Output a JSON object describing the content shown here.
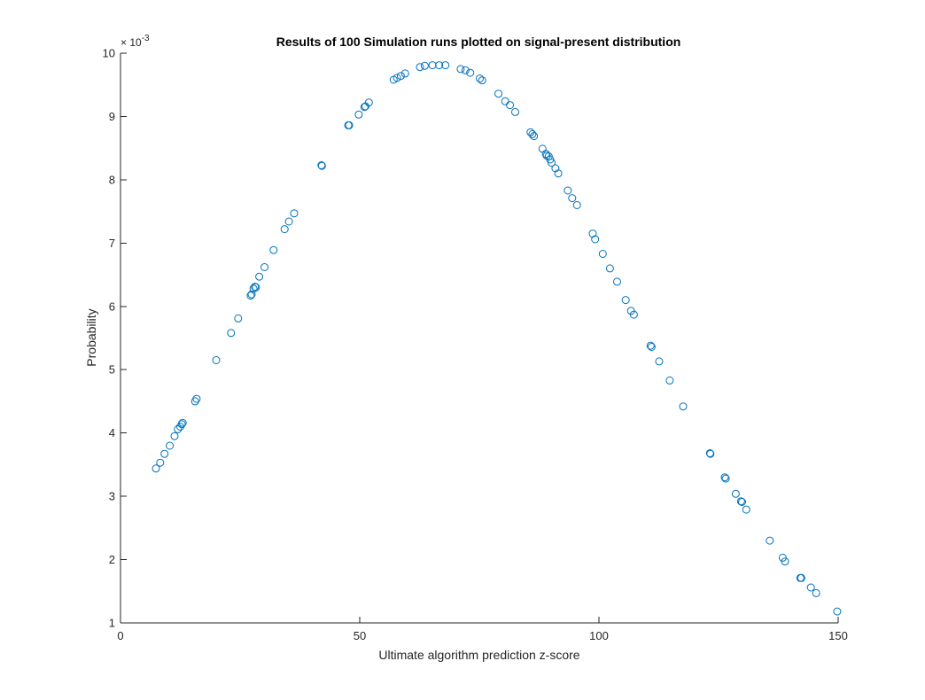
{
  "chart_data": {
    "type": "scatter",
    "title": "Results of 100 Simulation runs plotted on signal-present distribution",
    "xlabel": "Ultimate algorithm prediction z-score",
    "ylabel": "Probability",
    "y_exponent_label": "× 10^{-3}",
    "y_exponent_base": "× 10",
    "y_exponent_power": "-3",
    "xlim": [
      0,
      150
    ],
    "ylim": [
      1,
      10
    ],
    "xticks": [
      "0",
      "50",
      "100",
      "150"
    ],
    "yticks": [
      "1",
      "2",
      "3",
      "4",
      "5",
      "6",
      "7",
      "8",
      "9",
      "10"
    ],
    "grid": false,
    "marker": "circle-open",
    "color": "#0072bd",
    "points": [
      [
        7.4,
        3.44
      ],
      [
        8.3,
        3.53
      ],
      [
        9.2,
        3.67
      ],
      [
        10.3,
        3.8
      ],
      [
        11.3,
        3.95
      ],
      [
        12.0,
        4.06
      ],
      [
        12.5,
        4.1
      ],
      [
        12.8,
        4.14
      ],
      [
        13.0,
        4.16
      ],
      [
        15.6,
        4.5
      ],
      [
        15.9,
        4.54
      ],
      [
        20.0,
        5.15
      ],
      [
        23.1,
        5.58
      ],
      [
        24.6,
        5.81
      ],
      [
        27.2,
        6.17
      ],
      [
        27.4,
        6.19
      ],
      [
        27.8,
        6.28
      ],
      [
        28.1,
        6.31
      ],
      [
        28.3,
        6.3
      ],
      [
        29.0,
        6.47
      ],
      [
        30.1,
        6.62
      ],
      [
        32.0,
        6.89
      ],
      [
        34.3,
        7.22
      ],
      [
        35.2,
        7.34
      ],
      [
        36.3,
        7.47
      ],
      [
        42.0,
        8.23
      ],
      [
        42.1,
        8.22
      ],
      [
        47.6,
        8.86
      ],
      [
        47.8,
        8.86
      ],
      [
        49.8,
        9.03
      ],
      [
        51.0,
        9.15
      ],
      [
        51.2,
        9.16
      ],
      [
        51.9,
        9.22
      ],
      [
        57.1,
        9.58
      ],
      [
        57.8,
        9.61
      ],
      [
        58.6,
        9.64
      ],
      [
        59.5,
        9.68
      ],
      [
        62.6,
        9.78
      ],
      [
        63.6,
        9.8
      ],
      [
        65.2,
        9.81
      ],
      [
        66.6,
        9.81
      ],
      [
        67.9,
        9.81
      ],
      [
        71.1,
        9.75
      ],
      [
        72.1,
        9.73
      ],
      [
        73.1,
        9.69
      ],
      [
        75.1,
        9.6
      ],
      [
        75.6,
        9.57
      ],
      [
        79.0,
        9.36
      ],
      [
        80.4,
        9.24
      ],
      [
        81.4,
        9.18
      ],
      [
        82.5,
        9.07
      ],
      [
        85.7,
        8.75
      ],
      [
        86.1,
        8.72
      ],
      [
        86.4,
        8.69
      ],
      [
        88.2,
        8.49
      ],
      [
        88.9,
        8.41
      ],
      [
        89.1,
        8.38
      ],
      [
        89.5,
        8.37
      ],
      [
        89.8,
        8.32
      ],
      [
        90.1,
        8.27
      ],
      [
        90.9,
        8.18
      ],
      [
        91.5,
        8.1
      ],
      [
        93.5,
        7.83
      ],
      [
        94.4,
        7.71
      ],
      [
        95.4,
        7.6
      ],
      [
        98.7,
        7.15
      ],
      [
        99.2,
        7.06
      ],
      [
        100.8,
        6.83
      ],
      [
        102.3,
        6.6
      ],
      [
        103.8,
        6.39
      ],
      [
        105.6,
        6.1
      ],
      [
        106.7,
        5.93
      ],
      [
        107.3,
        5.87
      ],
      [
        110.8,
        5.38
      ],
      [
        111.0,
        5.36
      ],
      [
        112.6,
        5.13
      ],
      [
        114.8,
        4.83
      ],
      [
        117.6,
        4.42
      ],
      [
        123.2,
        3.68
      ],
      [
        123.3,
        3.67
      ],
      [
        126.3,
        3.3
      ],
      [
        126.5,
        3.28
      ],
      [
        128.6,
        3.04
      ],
      [
        129.7,
        2.92
      ],
      [
        129.9,
        2.91
      ],
      [
        130.8,
        2.79
      ],
      [
        135.7,
        2.3
      ],
      [
        138.4,
        2.03
      ],
      [
        138.9,
        1.97
      ],
      [
        142.1,
        1.71
      ],
      [
        142.3,
        1.71
      ],
      [
        144.3,
        1.56
      ],
      [
        145.4,
        1.47
      ],
      [
        149.8,
        1.18
      ]
    ]
  }
}
